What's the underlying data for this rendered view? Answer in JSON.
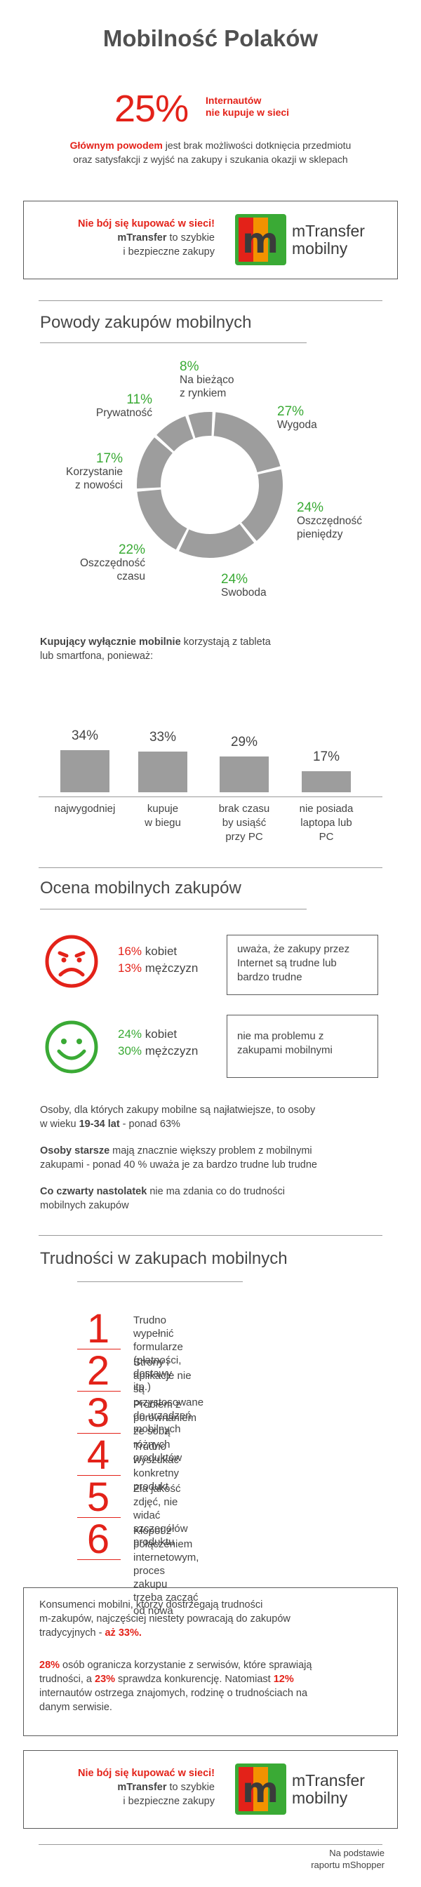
{
  "title": "Mobilność Polaków",
  "headline": {
    "percent": "25%",
    "note_line1": "Internautów",
    "note_line2": "nie kupuje w sieci"
  },
  "intro": {
    "bold": "Głównym powodem",
    "rest_line1": " jest brak możliwości dotknięcia przedmiotu",
    "line2": "oraz satysfakcji z wyjść na zakupy i szukania okazji w sklepach"
  },
  "ad": {
    "line1": "Nie bój się kupować w sieci!",
    "brand": "mTransfer",
    "line2_rest": " to szybkie",
    "line3": "i bezpieczne zakupy",
    "logo_letter": "m",
    "logo_name_line1": "mTransfer",
    "logo_name_line2": "mobilny",
    "colors": {
      "red": "#e32219",
      "orange": "#f39200",
      "green": "#3aaa35",
      "dark": "#3b3b3b"
    }
  },
  "reasons": {
    "title": "Powody zakupów mobilnych",
    "chart_data": {
      "type": "pie",
      "segments": [
        {
          "pct": "8%",
          "value": 8,
          "label_lines": [
            "Na bieżąco",
            "z rynkiem"
          ]
        },
        {
          "pct": "27%",
          "value": 27,
          "label_lines": [
            "Wygoda"
          ]
        },
        {
          "pct": "24%",
          "value": 24,
          "label_lines": [
            "Oszczędność",
            "pieniędzy"
          ]
        },
        {
          "pct": "24%",
          "value": 24,
          "label_lines": [
            "Swoboda"
          ]
        },
        {
          "pct": "22%",
          "value": 22,
          "label_lines": [
            "Oszczędność",
            "czasu"
          ]
        },
        {
          "pct": "17%",
          "value": 17,
          "label_lines": [
            "Korzystanie",
            "z nowości"
          ]
        },
        {
          "pct": "11%",
          "value": 11,
          "label_lines": [
            "Prywatność"
          ]
        }
      ],
      "color": "#9d9d9d"
    }
  },
  "mobile_only": {
    "intro_bold": "Kupujący wyłącznie mobilnie",
    "intro_rest": " korzystają z tableta",
    "intro_line2": "lub smartfona, ponieważ:",
    "chart_data": {
      "type": "bar",
      "categories": [
        "najwygodniej",
        "kupuje w biegu",
        "brak czasu by usiąść przy PC",
        "nie posiada laptopa lub PC"
      ],
      "category_lines": [
        [
          "najwygodniej"
        ],
        [
          "kupuje",
          "w biegu"
        ],
        [
          "brak czasu",
          "by usiąść",
          "przy PC"
        ],
        [
          "nie posiada",
          "laptopa lub",
          "PC"
        ]
      ],
      "values": [
        34,
        33,
        29,
        17
      ],
      "value_labels": [
        "34%",
        "33%",
        "29%",
        "17%"
      ],
      "color": "#9d9d9d"
    }
  },
  "rating": {
    "title": "Ocena mobilnych zakupów",
    "negative": {
      "women_pct": "16%",
      "women_label": " kobiet",
      "men_pct": "13%",
      "men_label": " mężczyzn",
      "quote_lines": [
        "uważa, że zakupy przez",
        "Internet są trudne lub",
        "bardzo trudne"
      ]
    },
    "positive": {
      "women_pct": "24%",
      "women_label": " kobiet",
      "men_pct": "30%",
      "men_label": " mężczyzn",
      "quote_lines": [
        "nie ma problemu z",
        "zakupami mobilnymi"
      ]
    },
    "p1_line1": "Osoby, dla których zakupy mobilne są najłatwiejsze, to osoby",
    "p1_line2_pre": "w wieku ",
    "p1_line2_bold": "19-34 lat",
    "p1_line2_post": " - ponad 63%",
    "p2_bold": "Osoby starsze",
    "p2_rest": " mają znacznie większy problem z mobilnymi",
    "p2_line2": "zakupami - ponad 40 % uważa je za bardzo trudne lub trudne",
    "p3_bold": "Co czwarty nastolatek",
    "p3_rest": " nie ma zdania co do trudności",
    "p3_line2": "mobilnych zakupów"
  },
  "difficulties": {
    "title": "Trudności w zakupach mobilnych",
    "items": [
      {
        "num": "1",
        "lines": [
          "Trudno wypełnić formularze",
          "(płatności, dostawy itp.)"
        ]
      },
      {
        "num": "2",
        "lines": [
          "Strony i aplikacje nie są przystosowane",
          "do urządzeń mobilnych"
        ]
      },
      {
        "num": "3",
        "lines": [
          "Problem z porównaniem ze sobą",
          "różnych produktów"
        ]
      },
      {
        "num": "4",
        "lines": [
          "Trudno wyszukać",
          "konkretny produkt"
        ]
      },
      {
        "num": "5",
        "lines": [
          "Zła jakość zdjęć, nie widać",
          "szczegółów produktu"
        ]
      },
      {
        "num": "6",
        "lines": [
          "Kłopot z połączeniem internetowym,",
          "proces zakupu trzeba zacząć od nowa"
        ]
      }
    ]
  },
  "summary": {
    "p1_line1": "Konsumenci mobilni, którzy dostrzegają trudności",
    "p1_line2": "m-zakupów, najczęściej niestety powracają do zakupów",
    "p1_line3_pre": "tradycyjnych - ",
    "p1_line3_red": "aż 33%.",
    "p2_pct1": "28%",
    "p2_line1_rest": " osób ogranicza korzystanie z serwisów, które sprawiają",
    "p2_line2_pre": "trudności, a ",
    "p2_pct2": "23%",
    "p2_line2_mid": " sprawdza konkurencję. Natomiast ",
    "p2_pct3": "12%",
    "p2_line3": "internautów ostrzega znajomych, rodzinę o trudnościach na",
    "p2_line4": "danym serwisie."
  },
  "source": {
    "line1": "Na podstawie",
    "line2": "raportu mShopper"
  }
}
